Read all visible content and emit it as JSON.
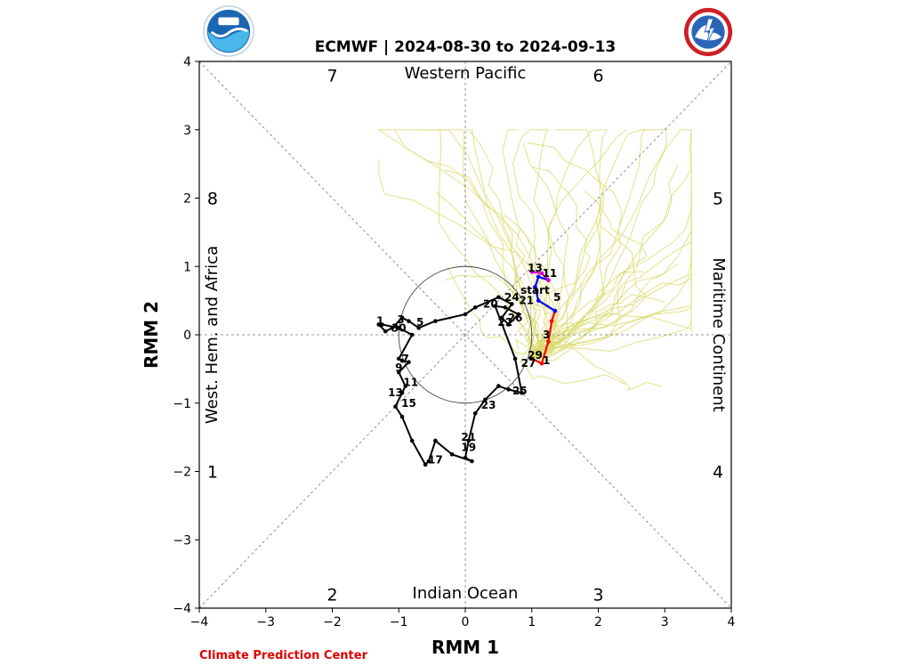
{
  "chart_data": {
    "type": "line",
    "title": "ECMWF | 2024-08-30 to 2024-09-13",
    "xlabel": "RMM 1",
    "ylabel": "RMM 2",
    "xlim": [
      -4,
      4
    ],
    "ylim": [
      -4,
      4
    ],
    "xticks": [
      -4,
      -3,
      -2,
      -1,
      0,
      1,
      2,
      3,
      4
    ],
    "yticks": [
      -4,
      -3,
      -2,
      -1,
      0,
      1,
      2,
      3,
      4
    ],
    "grid": false,
    "unit_circle_radius": 1,
    "regions": {
      "top": "Western Pacific",
      "bottom": "Indian Ocean",
      "left": "West. Hem. and Africa",
      "right": "Maritime Continent"
    },
    "phases": [
      {
        "label": "1",
        "x": -3.8,
        "y": -2
      },
      {
        "label": "2",
        "x": -2,
        "y": -3.8
      },
      {
        "label": "3",
        "x": 2,
        "y": -3.8
      },
      {
        "label": "4",
        "x": 3.8,
        "y": -2
      },
      {
        "label": "5",
        "x": 3.8,
        "y": 2
      },
      {
        "label": "6",
        "x": 2,
        "y": 3.8
      },
      {
        "label": "7",
        "x": -2,
        "y": 3.8
      },
      {
        "label": "8",
        "x": -3.8,
        "y": 2
      }
    ],
    "series": [
      {
        "color": "#000000",
        "x": [
          -1.3,
          -1.2,
          -1.1,
          -0.95,
          -0.85,
          -0.7,
          -0.45,
          0.0,
          0.15,
          0.5,
          0.7,
          0.55,
          0.65,
          0.8,
          0.6,
          0.45,
          0.75,
          0.85,
          0.65,
          0.5,
          0.3,
          0.15,
          0.05,
          0.0,
          0.1,
          -0.2,
          -0.45,
          -0.55,
          -0.6,
          -0.8,
          -0.95,
          -1.05,
          -0.95,
          -0.9,
          -1.0,
          -0.85,
          -0.95,
          -1.0,
          -0.8,
          -1.0,
          -1.25,
          -1.3
        ],
        "y": [
          0.15,
          0.05,
          0.1,
          0.25,
          0.2,
          0.1,
          0.2,
          0.3,
          0.4,
          0.55,
          0.45,
          0.25,
          0.15,
          0.3,
          0.4,
          0.42,
          -0.35,
          -0.85,
          -0.8,
          -0.75,
          -0.95,
          -1.15,
          -1.55,
          -1.8,
          -1.85,
          -1.75,
          -1.55,
          -1.85,
          -1.9,
          -1.55,
          -1.2,
          -1.05,
          -0.85,
          -0.75,
          -0.55,
          -0.4,
          -0.38,
          -0.35,
          0.0,
          0.1,
          0.15,
          0.15
        ]
      },
      {
        "color": "#ff0000",
        "x": [
          1.0,
          1.15,
          1.25,
          1.3,
          1.35
        ],
        "y": [
          -0.35,
          -0.42,
          -0.1,
          0.2,
          0.35
        ]
      },
      {
        "color": "#0000ff",
        "x": [
          1.35,
          1.1,
          1.05,
          1.1,
          1.25
        ],
        "y": [
          0.35,
          0.5,
          0.7,
          0.85,
          0.8
        ]
      },
      {
        "color": "#cc00cc",
        "x": [
          1.25,
          1.15,
          1.0
        ],
        "y": [
          0.8,
          0.9,
          0.92
        ]
      }
    ],
    "annotations": [
      {
        "text": "1",
        "x": -1.28,
        "y": 0.2
      },
      {
        "text": "3",
        "x": -0.97,
        "y": 0.22
      },
      {
        "text": "30",
        "x": -1.0,
        "y": 0.1
      },
      {
        "text": "5",
        "x": -0.68,
        "y": 0.18
      },
      {
        "text": "7",
        "x": -0.9,
        "y": -0.35
      },
      {
        "text": "9",
        "x": -1.0,
        "y": -0.48
      },
      {
        "text": "11",
        "x": -0.82,
        "y": -0.7
      },
      {
        "text": "13",
        "x": -1.05,
        "y": -0.85
      },
      {
        "text": "15",
        "x": -0.85,
        "y": -1.0
      },
      {
        "text": "17",
        "x": -0.45,
        "y": -1.83
      },
      {
        "text": "19",
        "x": 0.05,
        "y": -1.65
      },
      {
        "text": "21",
        "x": 0.05,
        "y": -1.5
      },
      {
        "text": "23",
        "x": 0.35,
        "y": -1.03
      },
      {
        "text": "25",
        "x": 0.82,
        "y": -0.82
      },
      {
        "text": "27",
        "x": 0.95,
        "y": -0.42
      },
      {
        "text": "29",
        "x": 1.05,
        "y": -0.3
      },
      {
        "text": "20",
        "x": 0.38,
        "y": 0.45
      },
      {
        "text": "22",
        "x": 0.6,
        "y": 0.18
      },
      {
        "text": "24",
        "x": 0.7,
        "y": 0.55
      },
      {
        "text": "26",
        "x": 0.75,
        "y": 0.25
      },
      {
        "text": "21",
        "x": 0.92,
        "y": 0.5
      },
      {
        "text": "1",
        "x": 1.22,
        "y": -0.38
      },
      {
        "text": "3",
        "x": 1.22,
        "y": 0.0
      },
      {
        "text": "5",
        "x": 1.38,
        "y": 0.55
      },
      {
        "text": "start",
        "x": 1.05,
        "y": 0.65
      },
      {
        "text": "11",
        "x": 1.27,
        "y": 0.9
      },
      {
        "text": "13",
        "x": 1.05,
        "y": 0.98
      }
    ],
    "footer": "Climate Prediction Center"
  }
}
